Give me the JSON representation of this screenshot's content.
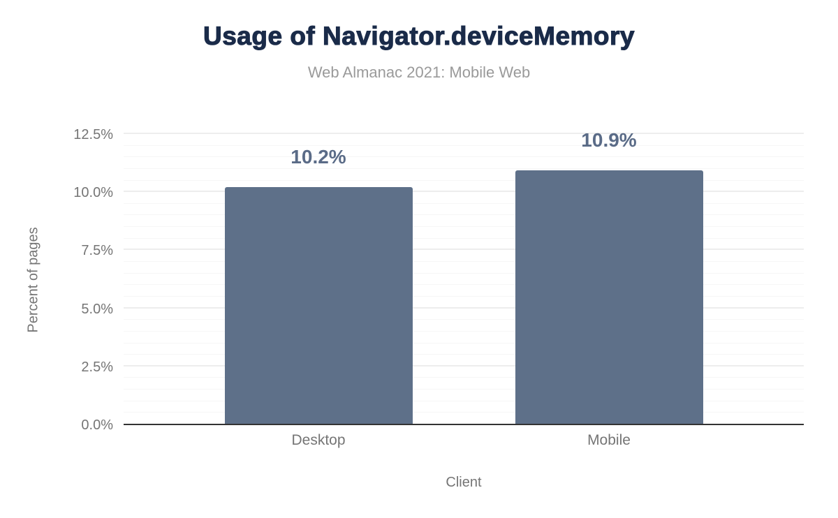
{
  "chart_data": {
    "type": "bar",
    "title": "Usage of Navigator.deviceMemory",
    "subtitle": "Web Almanac 2021: Mobile Web",
    "xlabel": "Client",
    "ylabel": "Percent of pages",
    "categories": [
      "Desktop",
      "Mobile"
    ],
    "values": [
      10.2,
      10.9
    ],
    "value_labels": [
      "10.2%",
      "10.9%"
    ],
    "ylim": [
      0,
      12.5
    ],
    "y_ticks": [
      0,
      2.5,
      5,
      7.5,
      10,
      12.5
    ],
    "y_tick_labels": [
      "0.0%",
      "2.5%",
      "5.0%",
      "7.5%",
      "10.0%",
      "12.5%"
    ],
    "minor_tick_step": 0.5,
    "grid": true,
    "legend": "none",
    "colors": {
      "bar": "#5E7089",
      "value_label": "#5A6B87",
      "title": "#1A2B49",
      "subtitle": "#9A9A9A",
      "axis_text": "#757575",
      "axis_line": "#333333",
      "grid_major": "#EDEDED",
      "grid_minor": "#F6F6F6",
      "background": "#FFFFFF"
    }
  }
}
